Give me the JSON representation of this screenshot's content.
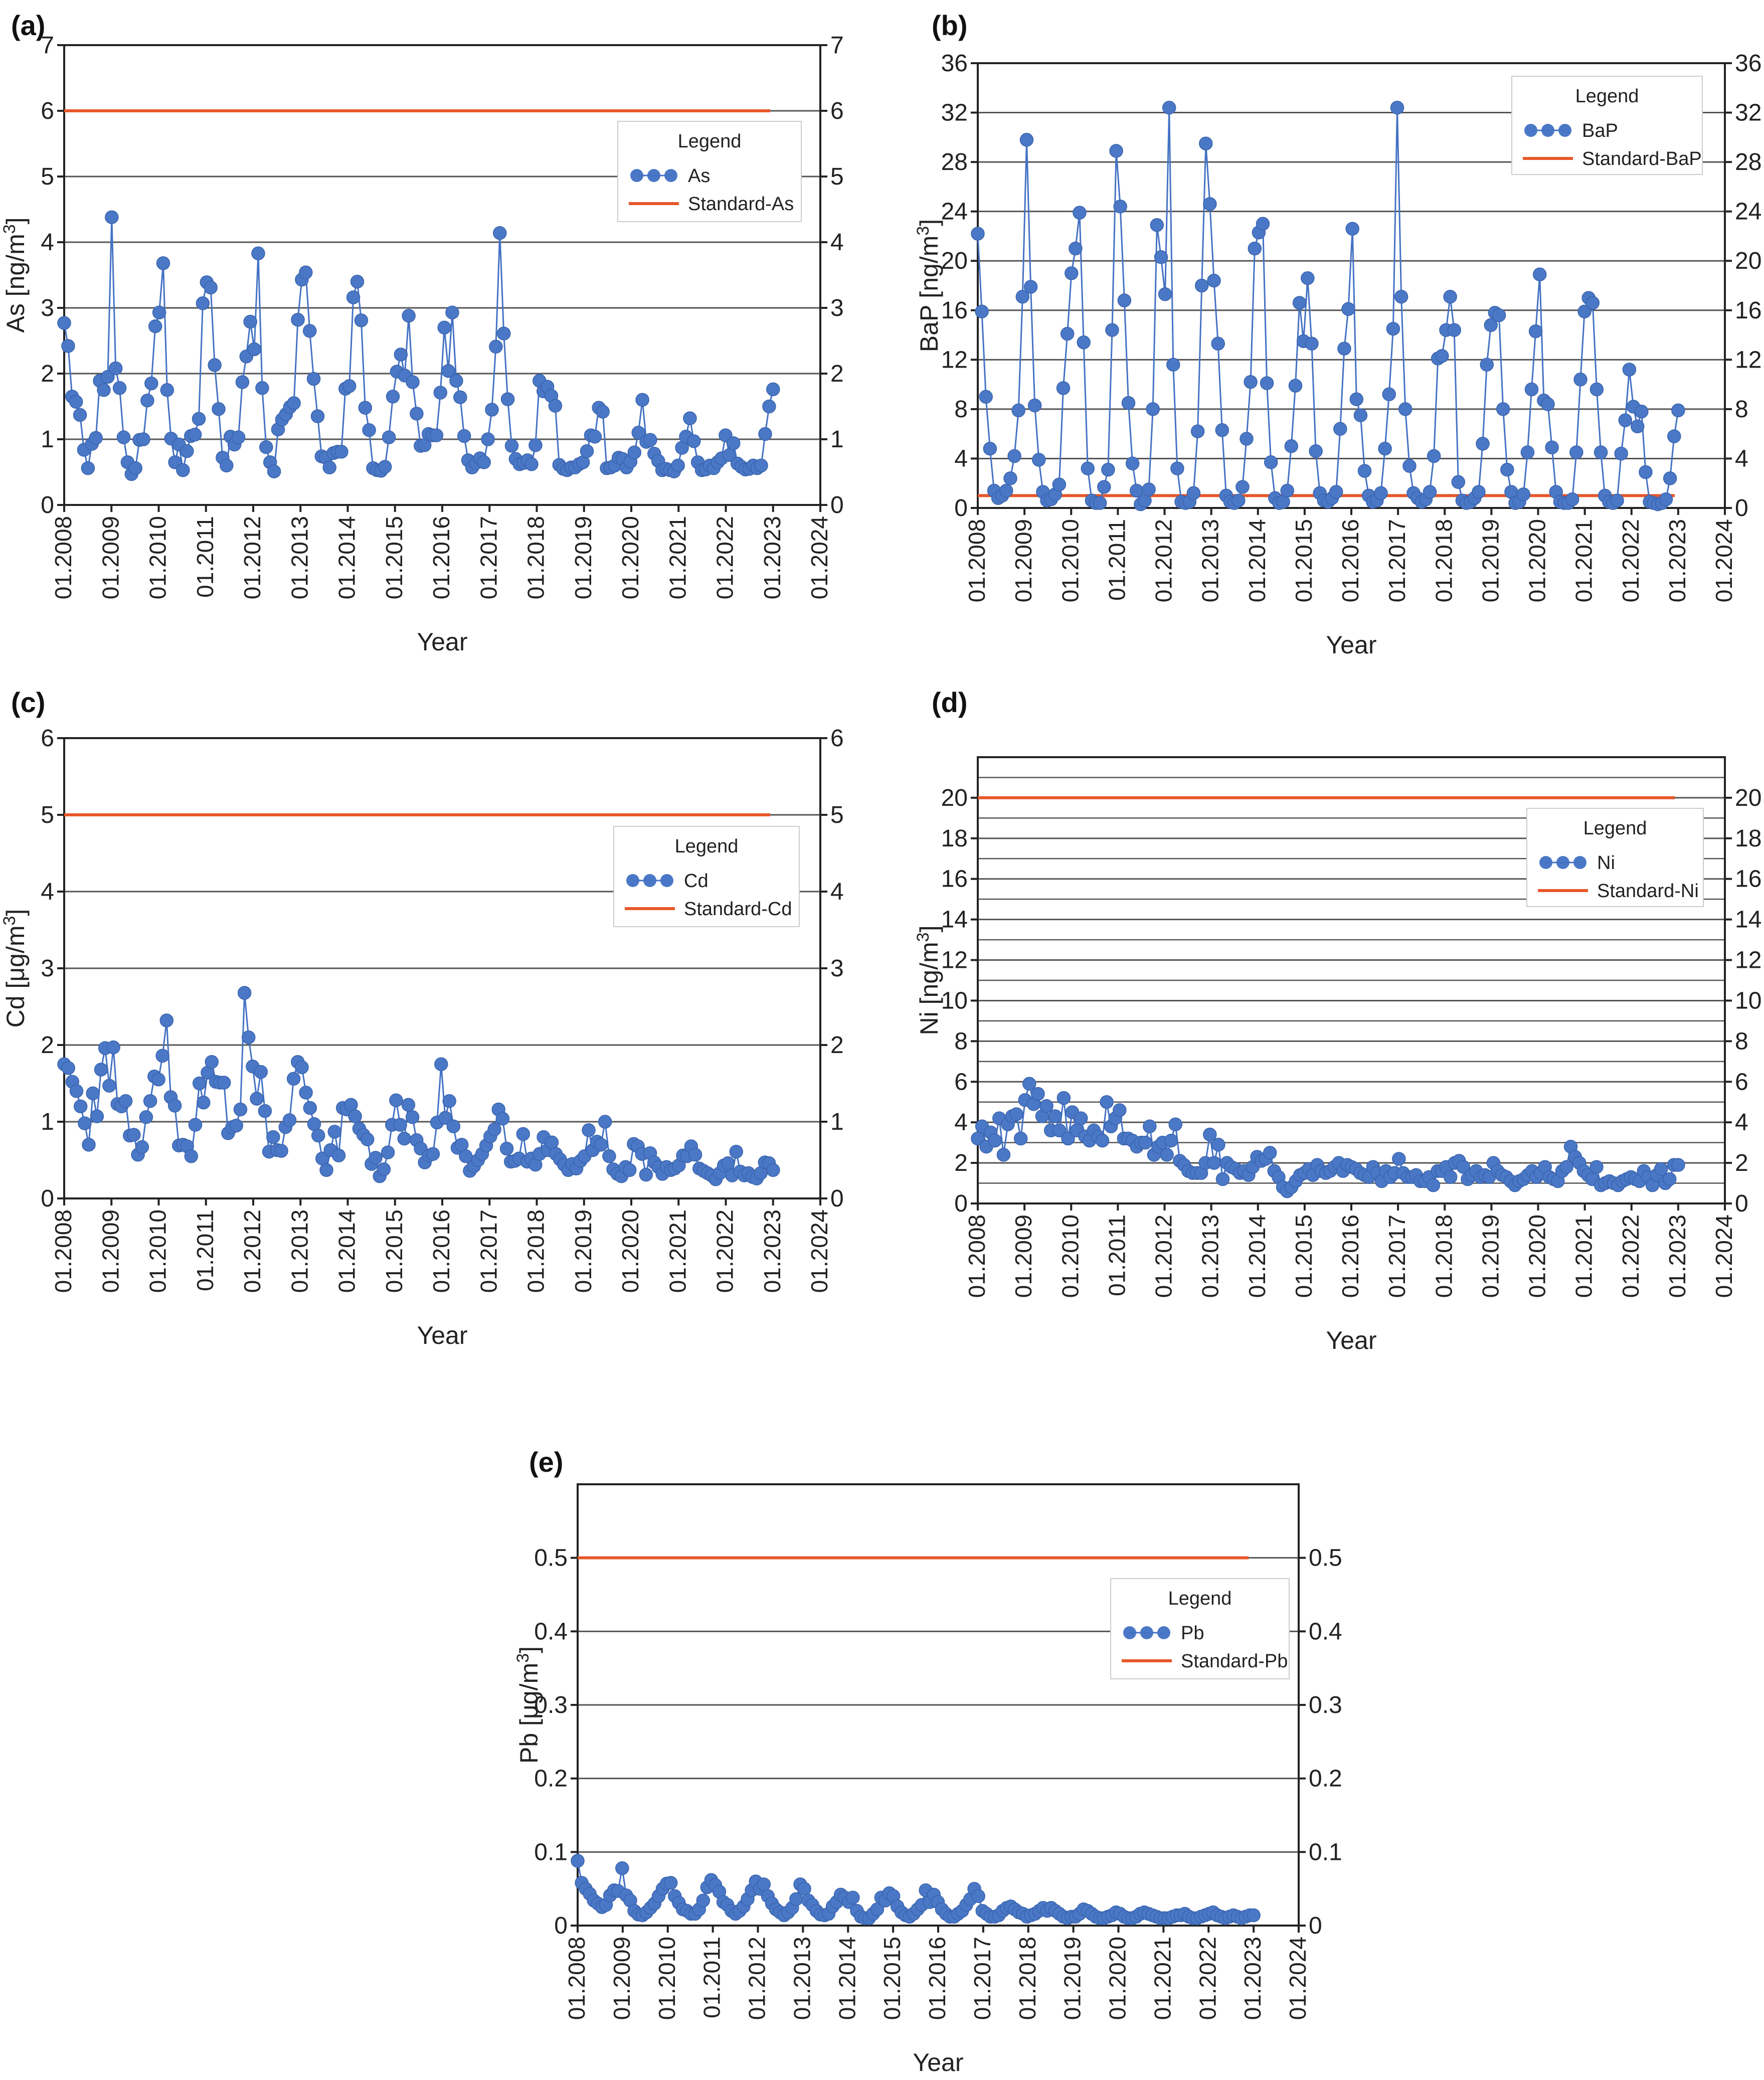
{
  "chart_data": [
    {
      "panel": "(a)",
      "type": "line",
      "xlabel": "Year",
      "ylabel": "As [ng/m3]",
      "ylabel_base": "As [ng/m",
      "ylabel_sup": "3",
      "ylabel_tail": "]",
      "xlim": [
        2008,
        2024
      ],
      "ylim": [
        0,
        7
      ],
      "yticks": [
        0,
        1,
        2,
        3,
        4,
        5,
        6,
        7
      ],
      "ytick_labels": [
        "0",
        "1",
        "2",
        "3",
        "4",
        "5",
        "6",
        "7"
      ],
      "xtick_labels": [
        "01.2008",
        "01.2009",
        "01.2010",
        "01.2011",
        "01.2012",
        "01.2013",
        "01.2014",
        "01.2015",
        "01.2016",
        "01.2017",
        "01.2018",
        "01.2019",
        "01.2020",
        "01.2021",
        "01.2022",
        "01.2023",
        "01.2024"
      ],
      "grid": true,
      "legend_title": "Legend",
      "legend_position": "upper-right",
      "series_name": "As",
      "standard_name": "Standard-As",
      "standard_value": 6,
      "series_color": "#4472c4",
      "marker_color": "#4a78c6",
      "standard_color": "#e8572a",
      "values": [
        2.77,
        2.42,
        1.65,
        1.57,
        1.37,
        0.84,
        0.56,
        0.93,
        1.02,
        1.89,
        1.75,
        1.95,
        4.38,
        2.08,
        1.78,
        1.03,
        0.65,
        0.47,
        0.56,
        0.99,
        1.0,
        1.59,
        1.85,
        2.72,
        2.93,
        3.68,
        1.75,
        1.01,
        0.65,
        0.92,
        0.53,
        0.82,
        1.05,
        1.07,
        1.31,
        3.07,
        3.39,
        3.31,
        2.13,
        1.46,
        0.72,
        0.6,
        1.04,
        0.92,
        1.03,
        1.87,
        2.26,
        2.79,
        2.37,
        3.83,
        1.78,
        0.88,
        0.65,
        0.51,
        1.15,
        1.3,
        1.38,
        1.49,
        1.55,
        2.82,
        3.43,
        3.54,
        2.65,
        1.92,
        1.35,
        0.74,
        0.72,
        0.57,
        0.79,
        0.81,
        0.81,
        1.77,
        1.81,
        3.16,
        3.4,
        2.81,
        1.48,
        1.14,
        0.56,
        0.53,
        0.52,
        0.58,
        1.03,
        1.65,
        2.03,
        2.29,
        1.97,
        2.88,
        1.87,
        1.39,
        0.9,
        0.91,
        1.08,
        1.06,
        1.06,
        1.71,
        2.7,
        2.04,
        2.93,
        1.89,
        1.64,
        1.05,
        0.68,
        0.57,
        0.64,
        0.71,
        0.65,
        1.0,
        1.45,
        2.41,
        4.14,
        2.61,
        1.61,
        0.9,
        0.7,
        0.62,
        0.64,
        0.68,
        0.62,
        0.91,
        1.89,
        1.73,
        1.8,
        1.66,
        1.51,
        0.61,
        0.55,
        0.53,
        0.57,
        0.57,
        0.62,
        0.65,
        0.82,
        1.06,
        1.04,
        1.48,
        1.42,
        0.56,
        0.57,
        0.6,
        0.72,
        0.7,
        0.57,
        0.66,
        0.8,
        1.1,
        1.6,
        0.96,
        0.99,
        0.78,
        0.67,
        0.53,
        0.55,
        0.53,
        0.51,
        0.6,
        0.87,
        1.04,
        1.32,
        0.97,
        0.65,
        0.53,
        0.54,
        0.6,
        0.56,
        0.65,
        0.71,
        1.06,
        0.76,
        0.94,
        0.63,
        0.58,
        0.54,
        0.55,
        0.6,
        0.56,
        0.6,
        1.08,
        1.5,
        1.76
      ]
    },
    {
      "panel": "(b)",
      "type": "line",
      "xlabel": "Year",
      "ylabel": "BaP [ng/m3]",
      "ylabel_base": "BaP [ng/m",
      "ylabel_sup": "3",
      "ylabel_tail": "]",
      "xlim": [
        2008,
        2024
      ],
      "ylim": [
        0,
        36
      ],
      "yticks": [
        0,
        4,
        8,
        12,
        16,
        20,
        24,
        28,
        32,
        36
      ],
      "ytick_labels": [
        "0",
        "4",
        "8",
        "12",
        "16",
        "20",
        "24",
        "28",
        "32",
        "36"
      ],
      "xtick_labels": [
        "01.2008",
        "01.2009",
        "01.2010",
        "01.2011",
        "01.2012",
        "01.2013",
        "01.2014",
        "01.2015",
        "01.2016",
        "01.2017",
        "01.2018",
        "01.2019",
        "01.2020",
        "01.2021",
        "01.2022",
        "01.2023",
        "01.2024"
      ],
      "grid": true,
      "legend_title": "Legend",
      "legend_position": "upper-right",
      "series_name": "BaP",
      "standard_name": "Standard-BaP",
      "standard_value": 1,
      "series_color": "#4472c4",
      "marker_color": "#4a78c6",
      "standard_color": "#e8572a",
      "values": [
        22.2,
        15.9,
        9.0,
        4.8,
        1.4,
        0.8,
        1.0,
        1.4,
        2.4,
        4.2,
        7.9,
        17.1,
        29.8,
        17.9,
        8.3,
        3.9,
        1.3,
        0.6,
        0.7,
        1.1,
        1.9,
        9.7,
        14.1,
        19.0,
        21.0,
        23.9,
        13.4,
        3.2,
        0.6,
        0.4,
        0.4,
        1.7,
        3.1,
        14.4,
        28.9,
        24.4,
        16.8,
        8.5,
        3.6,
        1.4,
        0.3,
        0.6,
        1.5,
        8.0,
        22.9,
        20.3,
        17.3,
        32.4,
        11.6,
        3.2,
        0.5,
        0.4,
        0.5,
        1.2,
        6.2,
        18.0,
        29.5,
        24.6,
        18.4,
        13.3,
        6.3,
        1.0,
        0.5,
        0.4,
        0.6,
        1.7,
        5.6,
        10.2,
        21.0,
        22.3,
        23.0,
        10.1,
        3.7,
        0.8,
        0.4,
        0.5,
        1.4,
        5.0,
        9.9,
        16.6,
        13.5,
        18.6,
        13.3,
        4.6,
        1.2,
        0.6,
        0.5,
        0.8,
        1.3,
        6.4,
        12.9,
        16.1,
        22.6,
        8.8,
        7.5,
        3.0,
        1.0,
        0.5,
        0.6,
        1.2,
        4.8,
        9.2,
        14.5,
        32.4,
        17.1,
        8.0,
        3.4,
        1.2,
        0.8,
        0.5,
        0.7,
        1.3,
        4.2,
        12.1,
        12.3,
        14.4,
        17.1,
        14.4,
        2.1,
        0.6,
        0.4,
        0.5,
        0.8,
        1.3,
        5.2,
        11.6,
        14.8,
        15.8,
        15.6,
        8.0,
        3.1,
        1.3,
        0.4,
        0.5,
        1.1,
        4.5,
        9.6,
        14.3,
        18.9,
        8.7,
        8.4,
        4.9,
        1.3,
        0.5,
        0.4,
        0.4,
        0.7,
        4.5,
        10.4,
        15.9,
        17.0,
        16.6,
        9.6,
        4.5,
        1.0,
        0.5,
        0.4,
        0.6,
        4.4,
        7.1,
        11.2,
        8.2,
        6.6,
        7.8,
        2.9,
        0.5,
        0.4,
        0.3,
        0.4,
        0.7,
        2.4,
        5.8,
        7.9
      ]
    },
    {
      "panel": "(c)",
      "type": "line",
      "xlabel": "Year",
      "ylabel": "Cd [μg/m3]",
      "ylabel_base": "Cd [μg/m",
      "ylabel_sup": "3",
      "ylabel_tail": "]",
      "xlim": [
        2008,
        2024
      ],
      "ylim": [
        0,
        6
      ],
      "yticks": [
        0,
        1,
        2,
        3,
        4,
        5,
        6
      ],
      "ytick_labels": [
        "0",
        "1",
        "2",
        "3",
        "4",
        "5",
        "6"
      ],
      "xtick_labels": [
        "01.2008",
        "01.2009",
        "01.2010",
        "01.2011",
        "01.2012",
        "01.2013",
        "01.2014",
        "01.2015",
        "01.2016",
        "01.2017",
        "01.2018",
        "01.2019",
        "01.2020",
        "01.2021",
        "01.2022",
        "01.2023",
        "01.2024"
      ],
      "grid": true,
      "legend_title": "Legend",
      "legend_position": "upper-right",
      "series_name": "Cd",
      "standard_name": "Standard-Cd",
      "standard_value": 5,
      "series_color": "#4472c4",
      "marker_color": "#4a78c6",
      "standard_color": "#e8572a",
      "values": [
        1.75,
        1.7,
        1.52,
        1.4,
        1.2,
        0.98,
        0.7,
        1.37,
        1.07,
        1.68,
        1.96,
        1.47,
        1.97,
        1.23,
        1.2,
        1.27,
        0.82,
        0.83,
        0.57,
        0.67,
        1.06,
        1.27,
        1.59,
        1.55,
        1.86,
        2.32,
        1.32,
        1.21,
        0.69,
        0.7,
        0.68,
        0.55,
        0.96,
        1.5,
        1.25,
        1.64,
        1.78,
        1.52,
        1.51,
        1.51,
        0.85,
        0.93,
        0.95,
        1.16,
        2.68,
        2.1,
        1.72,
        1.3,
        1.65,
        1.14,
        0.61,
        0.8,
        0.63,
        0.62,
        0.93,
        1.02,
        1.56,
        1.78,
        1.71,
        1.38,
        1.18,
        0.97,
        0.82,
        0.52,
        0.37,
        0.63,
        0.87,
        0.56,
        1.18,
        1.16,
        1.22,
        1.07,
        0.91,
        0.83,
        0.77,
        0.45,
        0.53,
        0.29,
        0.38,
        0.6,
        0.96,
        1.28,
        0.96,
        0.78,
        1.22,
        1.06,
        0.76,
        0.65,
        0.47,
        0.56,
        0.58,
        0.99,
        1.75,
        1.05,
        1.27,
        0.94,
        0.66,
        0.7,
        0.55,
        0.36,
        0.42,
        0.5,
        0.58,
        0.69,
        0.81,
        0.9,
        1.16,
        1.04,
        0.65,
        0.48,
        0.49,
        0.52,
        0.84,
        0.48,
        0.52,
        0.44,
        0.58,
        0.8,
        0.63,
        0.73,
        0.58,
        0.51,
        0.44,
        0.37,
        0.45,
        0.39,
        0.49,
        0.55,
        0.89,
        0.63,
        0.74,
        0.7,
        1.0,
        0.55,
        0.38,
        0.32,
        0.29,
        0.41,
        0.37,
        0.71,
        0.68,
        0.58,
        0.31,
        0.59,
        0.47,
        0.41,
        0.32,
        0.41,
        0.37,
        0.39,
        0.43,
        0.56,
        0.55,
        0.68,
        0.57,
        0.39,
        0.36,
        0.33,
        0.3,
        0.25,
        0.33,
        0.43,
        0.46,
        0.3,
        0.61,
        0.35,
        0.3,
        0.33,
        0.28,
        0.26,
        0.33,
        0.47,
        0.46,
        0.37
      ]
    },
    {
      "panel": "(d)",
      "type": "line",
      "xlabel": "Year",
      "ylabel": "Ni [ng/m3]",
      "ylabel_base": "Ni [ng/m",
      "ylabel_sup": "3",
      "ylabel_tail": "]",
      "xlim": [
        2008,
        2024
      ],
      "ylim": [
        0,
        22
      ],
      "yticks": [
        0,
        2,
        4,
        6,
        8,
        10,
        12,
        14,
        16,
        18,
        20
      ],
      "ytick_labels": [
        "0",
        "2",
        "4",
        "6",
        "8",
        "10",
        "12",
        "14",
        "16",
        "18",
        "20"
      ],
      "minor_gridlines": [
        1,
        3,
        5,
        7,
        9,
        11,
        13,
        15,
        17,
        19,
        21
      ],
      "xtick_labels": [
        "01.2008",
        "01.2009",
        "01.2010",
        "01.2011",
        "01.2012",
        "01.2013",
        "01.2014",
        "01.2015",
        "01.2016",
        "01.2017",
        "01.2018",
        "01.2019",
        "01.2020",
        "01.2021",
        "01.2022",
        "01.2023",
        "01.2024"
      ],
      "grid": true,
      "legend_title": "Legend",
      "legend_position": "upper-right",
      "series_name": "Ni",
      "standard_name": "Standard-Ni",
      "standard_value": 20,
      "series_color": "#4472c4",
      "marker_color": "#4a78c6",
      "standard_color": "#e8572a",
      "values": [
        3.2,
        3.8,
        2.8,
        3.5,
        3.1,
        4.2,
        2.4,
        3.9,
        4.3,
        4.4,
        3.2,
        5.1,
        5.9,
        4.9,
        5.4,
        4.3,
        4.8,
        3.6,
        4.3,
        3.6,
        5.2,
        3.2,
        4.5,
        3.6,
        4.2,
        3.3,
        3.1,
        3.6,
        3.3,
        3.1,
        5.0,
        3.8,
        4.2,
        4.6,
        3.2,
        3.2,
        3.1,
        2.8,
        3.0,
        3.0,
        3.8,
        2.4,
        2.8,
        3.0,
        2.4,
        3.1,
        3.9,
        2.1,
        1.9,
        1.6,
        1.5,
        1.5,
        1.5,
        2.0,
        3.4,
        2.0,
        2.9,
        1.2,
        2.0,
        1.8,
        1.7,
        1.5,
        1.6,
        1.4,
        1.8,
        2.3,
        2.1,
        2.2,
        2.5,
        1.6,
        1.3,
        0.8,
        0.6,
        0.8,
        1.1,
        1.4,
        1.5,
        1.7,
        1.4,
        1.9,
        1.6,
        1.5,
        1.6,
        1.8,
        2.0,
        1.6,
        1.9,
        1.8,
        1.7,
        1.5,
        1.4,
        1.3,
        1.8,
        1.5,
        1.1,
        1.6,
        1.3,
        1.5,
        2.2,
        1.5,
        1.3,
        1.3,
        1.4,
        1.1,
        1.1,
        1.3,
        0.9,
        1.6,
        1.6,
        1.8,
        1.3,
        2.0,
        2.1,
        1.8,
        1.2,
        1.4,
        1.6,
        1.3,
        1.4,
        1.3,
        2.0,
        1.6,
        1.4,
        1.3,
        1.1,
        0.9,
        1.1,
        1.2,
        1.4,
        1.6,
        1.3,
        1.5,
        1.8,
        1.3,
        1.2,
        1.1,
        1.6,
        1.8,
        2.8,
        2.3,
        2.0,
        1.6,
        1.4,
        1.2,
        1.8,
        0.9,
        1.0,
        1.1,
        1.0,
        0.9,
        1.1,
        1.2,
        1.3,
        1.2,
        1.1,
        1.6,
        1.3,
        0.9,
        1.4,
        1.7,
        1.0,
        1.2,
        1.9,
        1.9
      ]
    },
    {
      "panel": "(e)",
      "type": "line",
      "xlabel": "Year",
      "ylabel": "Pb [μg/m3]",
      "ylabel_base": "Pb [μg/m",
      "ylabel_sup": "3",
      "ylabel_tail": "]",
      "xlim": [
        2008,
        2024
      ],
      "ylim": [
        0,
        0.6
      ],
      "yticks": [
        0,
        0.1,
        0.2,
        0.3,
        0.4,
        0.5
      ],
      "ytick_labels": [
        "0",
        "0.1",
        "0.2",
        "0.3",
        "0.4",
        "0.5"
      ],
      "xtick_labels": [
        "01.2008",
        "01.2009",
        "01.2010",
        "01.2011",
        "01.2012",
        "01.2013",
        "01.2014",
        "01.2015",
        "01.2016",
        "01.2017",
        "01.2018",
        "01.2019",
        "01.2020",
        "01.2021",
        "01.2022",
        "01.2023",
        "01.2024"
      ],
      "grid": true,
      "legend_title": "Legend",
      "legend_position": "upper-right",
      "series_name": "Pb",
      "standard_name": "Standard-Pb",
      "standard_value": 0.5,
      "series_color": "#4472c4",
      "marker_color": "#4a78c6",
      "standard_color": "#e8572a",
      "values": [
        0.088,
        0.058,
        0.05,
        0.043,
        0.034,
        0.03,
        0.025,
        0.028,
        0.041,
        0.048,
        0.047,
        0.078,
        0.041,
        0.034,
        0.02,
        0.015,
        0.014,
        0.018,
        0.024,
        0.03,
        0.04,
        0.05,
        0.057,
        0.058,
        0.04,
        0.031,
        0.022,
        0.02,
        0.016,
        0.016,
        0.022,
        0.034,
        0.052,
        0.062,
        0.055,
        0.046,
        0.032,
        0.028,
        0.02,
        0.016,
        0.02,
        0.026,
        0.036,
        0.048,
        0.06,
        0.05,
        0.056,
        0.04,
        0.03,
        0.022,
        0.018,
        0.014,
        0.018,
        0.024,
        0.036,
        0.056,
        0.05,
        0.034,
        0.028,
        0.02,
        0.015,
        0.014,
        0.016,
        0.026,
        0.032,
        0.042,
        0.038,
        0.032,
        0.038,
        0.02,
        0.012,
        0.01,
        0.01,
        0.016,
        0.022,
        0.038,
        0.034,
        0.044,
        0.04,
        0.026,
        0.018,
        0.014,
        0.012,
        0.016,
        0.022,
        0.028,
        0.048,
        0.032,
        0.042,
        0.032,
        0.022,
        0.016,
        0.012,
        0.012,
        0.016,
        0.02,
        0.028,
        0.036,
        0.05,
        0.04,
        0.02,
        0.016,
        0.012,
        0.012,
        0.014,
        0.02,
        0.024,
        0.026,
        0.022,
        0.018,
        0.016,
        0.012,
        0.014,
        0.016,
        0.02,
        0.024,
        0.02,
        0.024,
        0.02,
        0.016,
        0.012,
        0.01,
        0.012,
        0.012,
        0.016,
        0.022,
        0.02,
        0.016,
        0.012,
        0.01,
        0.01,
        0.012,
        0.014,
        0.018,
        0.016,
        0.012,
        0.01,
        0.01,
        0.012,
        0.016,
        0.018,
        0.016,
        0.014,
        0.012,
        0.01,
        0.01,
        0.01,
        0.012,
        0.014,
        0.014,
        0.016,
        0.012,
        0.01,
        0.01,
        0.012,
        0.014,
        0.016,
        0.018,
        0.014,
        0.012,
        0.01,
        0.012,
        0.014,
        0.012,
        0.01,
        0.012,
        0.014,
        0.014
      ]
    }
  ]
}
